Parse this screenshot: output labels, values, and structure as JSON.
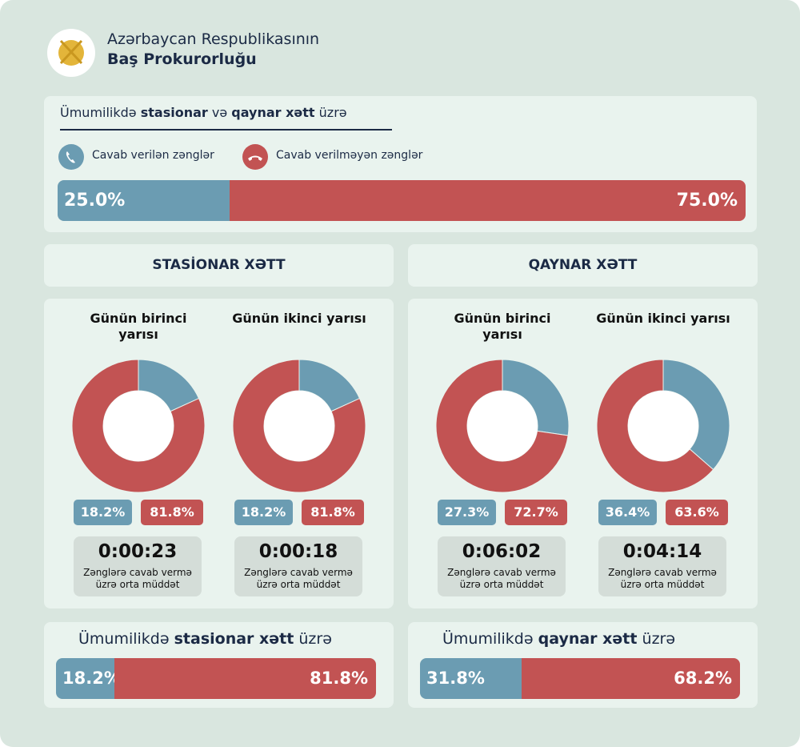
{
  "header": {
    "line1": "Azərbaycan Respublikasının",
    "line2": "Baş Prokurorluğu"
  },
  "summary": {
    "type": "stacked-bar",
    "title": [
      {
        "text": "Ümumilikdə "
      },
      {
        "text": "stasionar",
        "bold": true
      },
      {
        "text": " və "
      },
      {
        "text": "qaynar xətt",
        "bold": true
      },
      {
        "text": " üzrə"
      }
    ],
    "series": [
      {
        "name": "Cavab verilən zənglər",
        "color": "#6b9cb2",
        "values": [
          25.0
        ],
        "value_labels": [
          "25.0%"
        ]
      },
      {
        "name": "Cavab verilməyən zənglər",
        "color": "#c25353",
        "values": [
          75.0
        ],
        "value_labels": [
          "75.0%"
        ]
      }
    ]
  },
  "panels": [
    {
      "heading": "STASİONAR XƏTT",
      "donuts": [
        {
          "type": "donut",
          "title": "Günün birinci yarısı",
          "values": [
            18.2,
            81.8
          ],
          "value_labels": [
            "18.2%",
            "81.8%"
          ],
          "duration": "0:00:23",
          "caption": "Zənglərə cavab vermə üzrə orta müddət"
        },
        {
          "type": "donut",
          "title": "Günün ikinci yarısı",
          "values": [
            18.2,
            81.8
          ],
          "value_labels": [
            "18.2%",
            "81.8%"
          ],
          "duration": "0:00:18",
          "caption": "Zənglərə cavab vermə üzrə orta müddət"
        }
      ],
      "total": {
        "type": "stacked-bar",
        "title": [
          {
            "text": "Ümumilikdə "
          },
          {
            "text": "stasionar xətt",
            "bold": true
          },
          {
            "text": " üzrə"
          }
        ],
        "values": [
          18.2,
          81.8
        ],
        "value_labels": [
          "18.2%",
          "81.8%"
        ]
      }
    },
    {
      "heading": "QAYNAR XƏTT",
      "donuts": [
        {
          "type": "donut",
          "title": "Günün birinci yarısı",
          "values": [
            27.3,
            72.7
          ],
          "value_labels": [
            "27.3%",
            "72.7%"
          ],
          "duration": "0:06:02",
          "caption": "Zənglərə cavab vermə üzrə orta müddət"
        },
        {
          "type": "donut",
          "title": "Günün ikinci yarısı",
          "values": [
            36.4,
            63.6
          ],
          "value_labels": [
            "36.4%",
            "63.6%"
          ],
          "duration": "0:04:14",
          "caption": "Zənglərə cavab vermə üzrə orta müddət"
        }
      ],
      "total": {
        "type": "stacked-bar",
        "title": [
          {
            "text": "Ümumilikdə "
          },
          {
            "text": "qaynar xətt",
            "bold": true
          },
          {
            "text": " üzrə"
          }
        ],
        "values": [
          31.8,
          68.2
        ],
        "value_labels": [
          "31.8%",
          "68.2%"
        ]
      }
    }
  ]
}
